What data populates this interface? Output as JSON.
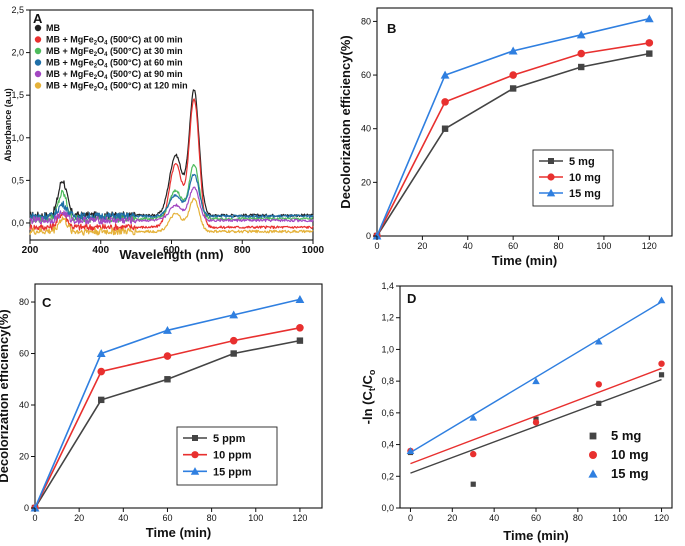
{
  "chart_data": [
    {
      "panel": "A",
      "type": "line",
      "xlabel": "Wavelength (nm)",
      "ylabel": "Absorbance (a.u)",
      "xlim": [
        200,
        1000
      ],
      "ylim": [
        -0.2,
        2.5
      ],
      "xticks": [
        "200",
        "400",
        "600",
        "800",
        "1000"
      ],
      "yticks": [
        "0,0",
        "0,5",
        "1,0",
        "1,5",
        "2,0",
        "2,5"
      ],
      "ytick_values": [
        0,
        0.5,
        1.0,
        1.5,
        2.0,
        2.5
      ],
      "legend_position": "top-left",
      "series": [
        {
          "name": "MB",
          "label_main": "MB",
          "label_tail": "",
          "color": "#222222",
          "baseline": 0.09,
          "peak_main": 1.55,
          "peak_shoulder": 0.95,
          "peak_uv": 0.5
        },
        {
          "name": "MB + MgFe2O4 (500°C) at 00 min",
          "label_main": "MB + MgFe",
          "label_tail": " (500°C) at 00 min",
          "color": "#e8302f",
          "baseline": -0.05,
          "peak_main": 1.45,
          "peak_shoulder": 0.85,
          "peak_uv": 0.12
        },
        {
          "name": "MB + MgFe2O4 (500°C) at 30 min",
          "label_main": "MB + MgFe",
          "label_tail": " (500°C) at 30 min",
          "color": "#4dbb5c",
          "baseline": 0.05,
          "peak_main": 0.68,
          "peak_shoulder": 0.45,
          "peak_uv": 0.35
        },
        {
          "name": "MB + MgFe2O4 (500°C) at 60 min",
          "label_main": "MB + MgFe",
          "label_tail": " (500°C) at 60 min",
          "color": "#1f6fa8",
          "baseline": 0.08,
          "peak_main": 0.57,
          "peak_shoulder": 0.38,
          "peak_uv": 0.22
        },
        {
          "name": "MB + MgFe2O4 (500°C) at 90 min",
          "label_main": "MB + MgFe",
          "label_tail": " (500°C) at 90 min",
          "color": "#a348c2",
          "baseline": 0.03,
          "peak_main": 0.42,
          "peak_shoulder": 0.25,
          "peak_uv": 0.12
        },
        {
          "name": "MB + MgFe2O4 (500°C) at 120 min",
          "label_main": "MB + MgFe",
          "label_tail": " (500°C) at 120 min",
          "color": "#e5b23a",
          "baseline": -0.1,
          "peak_main": 0.28,
          "peak_shoulder": 0.15,
          "peak_uv": 0.05
        }
      ]
    },
    {
      "panel": "B",
      "type": "line",
      "xlabel": "Time (min)",
      "ylabel": "Decolorization efficiency(%)",
      "x": [
        0,
        30,
        60,
        90,
        120
      ],
      "xlim": [
        0,
        130
      ],
      "ylim": [
        0,
        85
      ],
      "xticks": [
        0,
        20,
        40,
        60,
        80,
        100,
        120
      ],
      "yticks": [
        0,
        20,
        40,
        60,
        80
      ],
      "legend_position": "center-right",
      "series": [
        {
          "name": "5 mg",
          "color": "#444444",
          "marker": "square",
          "values": [
            0,
            40,
            55,
            63,
            68
          ]
        },
        {
          "name": "10 mg",
          "color": "#e8302f",
          "marker": "circle",
          "values": [
            0,
            50,
            60,
            68,
            72
          ]
        },
        {
          "name": "15 mg",
          "color": "#2f7fe0",
          "marker": "triangle",
          "values": [
            0,
            60,
            69,
            75,
            81
          ]
        }
      ]
    },
    {
      "panel": "C",
      "type": "line",
      "xlabel": "Time (min)",
      "ylabel": "Decolorization efficiency(%)",
      "x": [
        0,
        30,
        60,
        90,
        120
      ],
      "xlim": [
        0,
        130
      ],
      "ylim": [
        0,
        87
      ],
      "xticks": [
        0,
        20,
        40,
        60,
        80,
        100,
        120
      ],
      "yticks": [
        0,
        20,
        40,
        60,
        80
      ],
      "legend_position": "center",
      "series": [
        {
          "name": "5 ppm",
          "color": "#444444",
          "marker": "square",
          "values": [
            0,
            42,
            50,
            60,
            65
          ]
        },
        {
          "name": "10 ppm",
          "color": "#e8302f",
          "marker": "circle",
          "values": [
            0,
            53,
            59,
            65,
            70
          ]
        },
        {
          "name": "15 ppm",
          "color": "#2f7fe0",
          "marker": "triangle",
          "values": [
            0,
            60,
            69,
            75,
            81
          ]
        }
      ]
    },
    {
      "panel": "D",
      "type": "scatter",
      "xlabel": "Time (min)",
      "ylabel_main": "-ln (C",
      "ylabel_sub": "t",
      "ylabel_mid": "/C",
      "ylabel_sub2": "o",
      "ylabel": "-ln (Ct/Co",
      "x": [
        0,
        30,
        60,
        90,
        120
      ],
      "xlim": [
        -5,
        125
      ],
      "ylim": [
        0,
        1.4
      ],
      "xticks": [
        0,
        20,
        40,
        60,
        80,
        100,
        120
      ],
      "yticks": [
        "0,0",
        "0,2",
        "0,4",
        "0,6",
        "0,8",
        "1,0",
        "1,2",
        "1,4"
      ],
      "ytick_values": [
        0,
        0.2,
        0.4,
        0.6,
        0.8,
        1.0,
        1.2,
        1.4
      ],
      "legend_position": "bottom-right",
      "series": [
        {
          "name": "5 mg",
          "color": "#444444",
          "marker": "square",
          "values": [
            0.35,
            0.15,
            0.56,
            0.66,
            0.84
          ],
          "fit": [
            0.22,
            0.81
          ]
        },
        {
          "name": "10 mg",
          "color": "#e8302f",
          "marker": "circle",
          "values": [
            0.36,
            0.34,
            0.54,
            0.78,
            0.91
          ],
          "fit": [
            0.28,
            0.88
          ]
        },
        {
          "name": "15 mg",
          "color": "#2f7fe0",
          "marker": "triangle",
          "values": [
            0.36,
            0.57,
            0.8,
            1.05,
            1.31
          ],
          "fit": [
            0.35,
            1.3
          ]
        }
      ]
    }
  ]
}
